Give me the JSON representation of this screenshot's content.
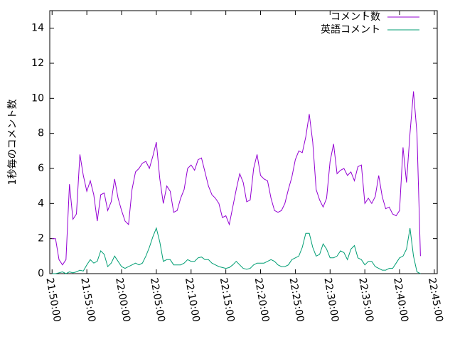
{
  "chart_data": {
    "type": "line",
    "ylabel": "1秒毎のコメント数",
    "x": [
      "21:50:00",
      "21:50:30",
      "21:51:00",
      "21:51:30",
      "21:52:00",
      "21:52:30",
      "21:53:00",
      "21:53:30",
      "21:54:00",
      "21:54:30",
      "21:55:00",
      "21:55:30",
      "21:56:00",
      "21:56:30",
      "21:57:00",
      "21:57:30",
      "21:58:00",
      "21:58:30",
      "21:59:00",
      "21:59:30",
      "22:00:00",
      "22:00:30",
      "22:01:00",
      "22:01:30",
      "22:02:00",
      "22:02:30",
      "22:03:00",
      "22:03:30",
      "22:04:00",
      "22:04:30",
      "22:05:00",
      "22:05:30",
      "22:06:00",
      "22:06:30",
      "22:07:00",
      "22:07:30",
      "22:08:00",
      "22:08:30",
      "22:09:00",
      "22:09:30",
      "22:10:00",
      "22:10:30",
      "22:11:00",
      "22:11:30",
      "22:12:00",
      "22:12:30",
      "22:13:00",
      "22:13:30",
      "22:14:00",
      "22:14:30",
      "22:15:00",
      "22:15:30",
      "22:16:00",
      "22:16:30",
      "22:17:00",
      "22:17:30",
      "22:18:00",
      "22:18:30",
      "22:19:00",
      "22:19:30",
      "22:20:00",
      "22:20:30",
      "22:21:00",
      "22:21:30",
      "22:22:00",
      "22:22:30",
      "22:23:00",
      "22:23:30",
      "22:24:00",
      "22:24:30",
      "22:25:00",
      "22:25:30",
      "22:26:00",
      "22:26:30",
      "22:27:00",
      "22:27:30",
      "22:28:00",
      "22:28:30",
      "22:29:00",
      "22:29:30",
      "22:30:00",
      "22:30:30",
      "22:31:00",
      "22:31:30",
      "22:32:00",
      "22:32:30",
      "22:33:00",
      "22:33:30",
      "22:34:00",
      "22:34:30",
      "22:35:00",
      "22:35:30",
      "22:36:00",
      "22:36:30",
      "22:37:00",
      "22:37:30",
      "22:38:00",
      "22:38:30",
      "22:39:00",
      "22:39:30",
      "22:40:00",
      "22:40:30",
      "22:41:00",
      "22:41:30",
      "22:42:00",
      "22:42:30",
      "22:43:00"
    ],
    "series": [
      {
        "name": "コメント数",
        "color": "#9400d3",
        "values": [
          2.0,
          2.0,
          0.8,
          0.5,
          0.8,
          5.1,
          3.1,
          3.4,
          6.8,
          5.6,
          4.7,
          5.3,
          4.5,
          3.0,
          4.5,
          4.6,
          3.6,
          4.1,
          5.4,
          4.3,
          3.6,
          3.0,
          2.8,
          4.8,
          5.8,
          6.0,
          6.3,
          6.4,
          6.0,
          6.7,
          7.5,
          5.4,
          4.0,
          5.0,
          4.7,
          3.5,
          3.6,
          4.3,
          4.8,
          6.0,
          6.2,
          5.9,
          6.5,
          6.6,
          5.8,
          5.0,
          4.5,
          4.3,
          4.0,
          3.2,
          3.3,
          2.8,
          3.8,
          4.8,
          5.7,
          5.2,
          4.1,
          4.2,
          6.0,
          6.8,
          5.6,
          5.4,
          5.3,
          4.3,
          3.6,
          3.5,
          3.6,
          4.0,
          4.8,
          5.5,
          6.5,
          7.0,
          6.9,
          7.8,
          9.1,
          7.5,
          4.8,
          4.2,
          3.8,
          4.3,
          6.4,
          7.4,
          5.7,
          5.9,
          6.0,
          5.6,
          5.8,
          5.3,
          6.1,
          6.2,
          4.0,
          4.3,
          4.0,
          4.4,
          5.6,
          4.4,
          3.7,
          3.8,
          3.4,
          3.3,
          3.6,
          7.2,
          5.2,
          8.0,
          10.4,
          8.0,
          1.0
        ]
      },
      {
        "name": "英語コメント",
        "color": "#009e73",
        "values": [
          0.0,
          0.0,
          0.05,
          0.1,
          0.0,
          0.1,
          0.05,
          0.1,
          0.2,
          0.15,
          0.5,
          0.8,
          0.6,
          0.7,
          1.3,
          1.1,
          0.4,
          0.6,
          1.0,
          0.7,
          0.4,
          0.3,
          0.4,
          0.5,
          0.6,
          0.5,
          0.6,
          1.0,
          1.5,
          2.1,
          2.6,
          1.8,
          0.7,
          0.8,
          0.8,
          0.5,
          0.5,
          0.5,
          0.6,
          0.8,
          0.7,
          0.7,
          0.9,
          0.95,
          0.8,
          0.8,
          0.6,
          0.5,
          0.4,
          0.35,
          0.3,
          0.35,
          0.5,
          0.7,
          0.5,
          0.3,
          0.25,
          0.3,
          0.5,
          0.6,
          0.6,
          0.6,
          0.7,
          0.8,
          0.7,
          0.5,
          0.4,
          0.4,
          0.5,
          0.8,
          0.9,
          1.0,
          1.5,
          2.3,
          2.3,
          1.5,
          1.0,
          1.1,
          1.7,
          1.4,
          0.9,
          0.9,
          1.0,
          1.3,
          1.2,
          0.8,
          1.4,
          1.6,
          0.9,
          0.8,
          0.5,
          0.7,
          0.7,
          0.4,
          0.3,
          0.2,
          0.2,
          0.3,
          0.3,
          0.6,
          0.9,
          1.0,
          1.4,
          2.6,
          1.0,
          0.1,
          0.0
        ]
      }
    ],
    "xlim": [
      "21:49:40",
      "22:45:25"
    ],
    "xticks": [
      "21:50:00",
      "21:55:00",
      "22:00:00",
      "22:05:00",
      "22:10:00",
      "22:15:00",
      "22:20:00",
      "22:25:00",
      "22:30:00",
      "22:35:00",
      "22:40:00",
      "22:45:00"
    ],
    "ylim": [
      0,
      15
    ],
    "yticks": [
      0,
      2,
      4,
      6,
      8,
      10,
      12,
      14
    ],
    "legend": "top-right"
  }
}
